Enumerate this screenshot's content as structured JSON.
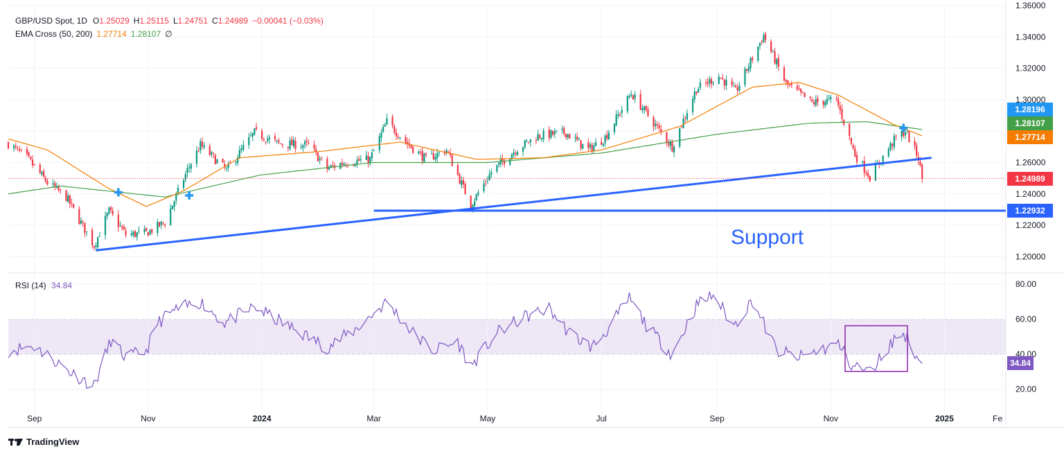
{
  "header": {
    "symbol": "GBP/USD Spot, 1D",
    "o_label": "O",
    "o_value": "1.25029",
    "h_label": "H",
    "h_value": "1.25115",
    "l_label": "L",
    "l_value": "1.24751",
    "c_label": "C",
    "c_value": "1.24989",
    "change": "−0.00041 (−0.03%)",
    "ema_title": "EMA Cross (50, 200)",
    "ema50_value": "1.27714",
    "ema200_value": "1.28107",
    "ema_extra": "∅"
  },
  "rsi_header": {
    "title": "RSI (14)",
    "value": "34.84"
  },
  "colors": {
    "up": "#089981",
    "down": "#f23645",
    "ema50": "#f57c00",
    "ema200": "#43a047",
    "trend": "#2962ff",
    "rsi": "#7e57c2",
    "rsi_band": "#ede7f6",
    "grid": "#f0f3fa"
  },
  "annotations": {
    "support_label": "Support"
  },
  "price_tags": [
    {
      "value": "1.28196",
      "color": "#2196f3"
    },
    {
      "value": "1.28107",
      "color": "#43a047"
    },
    {
      "value": "1.27714",
      "color": "#f57c00"
    },
    {
      "value": "1.24989",
      "color": "#f23645"
    },
    {
      "value": "1.22932",
      "color": "#2962ff"
    }
  ],
  "rsi_tag": {
    "value": "34.84",
    "color": "#7e57c2"
  },
  "brand": "TradingView",
  "chart_data": [
    {
      "type": "candlestick",
      "title": "GBP/USD Spot, 1D",
      "y_ticks": [
        "1.36000",
        "1.34000",
        "1.32000",
        "1.30000",
        "1.28000",
        "1.26000",
        "1.24000",
        "1.22000",
        "1.20000"
      ],
      "x_ticks": [
        "Sep",
        "Nov",
        "2024",
        "Mar",
        "May",
        "Jul",
        "Sep",
        "Nov",
        "2025",
        "Fe"
      ],
      "ylim": [
        1.19,
        1.36
      ],
      "anchors": [
        [
          "2023-08-18",
          1.272
        ],
        [
          "2023-08-28",
          1.263
        ],
        [
          "2023-09-08",
          1.247
        ],
        [
          "2023-09-18",
          1.238
        ],
        [
          "2023-10-03",
          1.207
        ],
        [
          "2023-10-11",
          1.229
        ],
        [
          "2023-10-20",
          1.214
        ],
        [
          "2023-10-31",
          1.215
        ],
        [
          "2023-11-10",
          1.222
        ],
        [
          "2023-11-22",
          1.255
        ],
        [
          "2023-11-29",
          1.271
        ],
        [
          "2023-12-13",
          1.255
        ],
        [
          "2023-12-28",
          1.279
        ],
        [
          "2024-01-10",
          1.272
        ],
        [
          "2024-01-26",
          1.271
        ],
        [
          "2024-02-05",
          1.256
        ],
        [
          "2024-02-14",
          1.26
        ],
        [
          "2024-02-28",
          1.262
        ],
        [
          "2024-03-08",
          1.286
        ],
        [
          "2024-03-19",
          1.272
        ],
        [
          "2024-03-29",
          1.262
        ],
        [
          "2024-04-09",
          1.268
        ],
        [
          "2024-04-22",
          1.233
        ],
        [
          "2024-05-03",
          1.254
        ],
        [
          "2024-05-16",
          1.268
        ],
        [
          "2024-05-28",
          1.277
        ],
        [
          "2024-06-12",
          1.279
        ],
        [
          "2024-06-24",
          1.268
        ],
        [
          "2024-07-03",
          1.276
        ],
        [
          "2024-07-17",
          1.304
        ],
        [
          "2024-08-02",
          1.279
        ],
        [
          "2024-08-08",
          1.27
        ],
        [
          "2024-08-21",
          1.307
        ],
        [
          "2024-09-02",
          1.315
        ],
        [
          "2024-09-11",
          1.305
        ],
        [
          "2024-09-26",
          1.341
        ],
        [
          "2024-10-08",
          1.31
        ],
        [
          "2024-10-22",
          1.298
        ],
        [
          "2024-11-04",
          1.3
        ],
        [
          "2024-11-14",
          1.265
        ],
        [
          "2024-11-22",
          1.251
        ],
        [
          "2024-12-06",
          1.276
        ],
        [
          "2024-12-11",
          1.28
        ],
        [
          "2024-12-18",
          1.263
        ],
        [
          "2024-12-20",
          1.25
        ]
      ],
      "ema50": [
        [
          "2023-08-18",
          1.275
        ],
        [
          "2023-09-08",
          1.268
        ],
        [
          "2023-10-10",
          1.244
        ],
        [
          "2023-10-31",
          1.232
        ],
        [
          "2023-11-20",
          1.242
        ],
        [
          "2023-12-20",
          1.263
        ],
        [
          "2024-02-01",
          1.267
        ],
        [
          "2024-03-15",
          1.273
        ],
        [
          "2024-04-25",
          1.262
        ],
        [
          "2024-05-31",
          1.263
        ],
        [
          "2024-07-01",
          1.268
        ],
        [
          "2024-08-12",
          1.283
        ],
        [
          "2024-09-20",
          1.308
        ],
        [
          "2024-10-15",
          1.311
        ],
        [
          "2024-11-05",
          1.303
        ],
        [
          "2024-12-05",
          1.284
        ],
        [
          "2024-12-20",
          1.277
        ]
      ],
      "ema200": [
        [
          "2023-08-18",
          1.24
        ],
        [
          "2023-09-15",
          1.245
        ],
        [
          "2023-11-10",
          1.238
        ],
        [
          "2023-12-31",
          1.252
        ],
        [
          "2024-03-01",
          1.26
        ],
        [
          "2024-05-01",
          1.26
        ],
        [
          "2024-07-01",
          1.266
        ],
        [
          "2024-09-01",
          1.278
        ],
        [
          "2024-10-20",
          1.285
        ],
        [
          "2024-11-20",
          1.286
        ],
        [
          "2024-12-20",
          1.281
        ]
      ],
      "trendline": [
        [
          "2023-10-04",
          1.204
        ],
        [
          "2024-12-25",
          1.263
        ]
      ],
      "support": {
        "value": 1.2293,
        "from": "2024-03-01"
      },
      "cross_markers": [
        [
          "2023-10-16",
          1.241
        ],
        [
          "2023-11-23",
          1.239
        ],
        [
          "2024-12-10",
          1.282
        ]
      ]
    },
    {
      "type": "line",
      "title": "RSI (14)",
      "y_ticks": [
        "80.00",
        "60.00",
        "40.00",
        "20.00"
      ],
      "ylim": [
        10,
        86
      ],
      "band": [
        40,
        60
      ],
      "anchors": [
        [
          "2023-08-18",
          42
        ],
        [
          "2023-08-31",
          45
        ],
        [
          "2023-09-10",
          38
        ],
        [
          "2023-09-20",
          30
        ],
        [
          "2023-10-03",
          22
        ],
        [
          "2023-10-12",
          48
        ],
        [
          "2023-10-20",
          38
        ],
        [
          "2023-10-31",
          42
        ],
        [
          "2023-11-06",
          58
        ],
        [
          "2023-11-15",
          65
        ],
        [
          "2023-11-29",
          70
        ],
        [
          "2023-12-12",
          58
        ],
        [
          "2023-12-28",
          67
        ],
        [
          "2024-01-15",
          56
        ],
        [
          "2024-02-05",
          44
        ],
        [
          "2024-02-20",
          54
        ],
        [
          "2024-03-08",
          70
        ],
        [
          "2024-03-22",
          52
        ],
        [
          "2024-04-02",
          42
        ],
        [
          "2024-04-15",
          47
        ],
        [
          "2024-04-22",
          33
        ],
        [
          "2024-05-06",
          52
        ],
        [
          "2024-05-20",
          61
        ],
        [
          "2024-06-03",
          66
        ],
        [
          "2024-06-14",
          52
        ],
        [
          "2024-06-26",
          44
        ],
        [
          "2024-07-05",
          55
        ],
        [
          "2024-07-16",
          72
        ],
        [
          "2024-07-26",
          55
        ],
        [
          "2024-08-08",
          40
        ],
        [
          "2024-08-21",
          68
        ],
        [
          "2024-08-30",
          74
        ],
        [
          "2024-09-10",
          56
        ],
        [
          "2024-09-20",
          71
        ],
        [
          "2024-10-03",
          42
        ],
        [
          "2024-10-15",
          38
        ],
        [
          "2024-10-28",
          43
        ],
        [
          "2024-11-05",
          46
        ],
        [
          "2024-11-12",
          34
        ],
        [
          "2024-11-22",
          30
        ],
        [
          "2024-12-06",
          50
        ],
        [
          "2024-12-11",
          51
        ],
        [
          "2024-12-18",
          37
        ],
        [
          "2024-12-20",
          34.8
        ]
      ]
    }
  ]
}
